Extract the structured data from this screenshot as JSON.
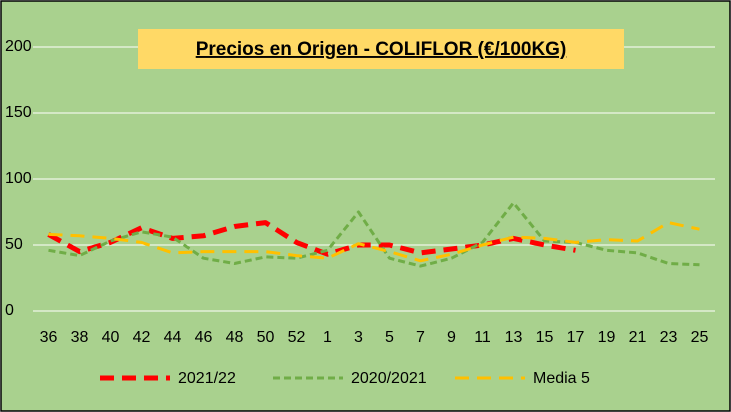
{
  "chart_data": {
    "type": "line",
    "title": "Precios en Origen - COLIFLOR (€/100KG)",
    "categories": [
      "36",
      "38",
      "40",
      "42",
      "44",
      "46",
      "48",
      "50",
      "52",
      "1",
      "3",
      "5",
      "7",
      "9",
      "11",
      "13",
      "15",
      "17",
      "19",
      "21",
      "23",
      "25"
    ],
    "series": [
      {
        "name": "2021/22",
        "color": "#ff0000",
        "dash": "14 8",
        "width": 5,
        "values": [
          58,
          45,
          52,
          63,
          55,
          57,
          64,
          67,
          52,
          43,
          50,
          50,
          44,
          47,
          50,
          55,
          50,
          46,
          null,
          null,
          null,
          null
        ]
      },
      {
        "name": "2020/2021",
        "color": "#70ad47",
        "dash": "7 4",
        "width": 3,
        "values": [
          46,
          42,
          53,
          60,
          56,
          40,
          36,
          41,
          40,
          46,
          75,
          40,
          34,
          40,
          52,
          82,
          53,
          52,
          46,
          44,
          36,
          35
        ]
      },
      {
        "name": "Media 5",
        "color": "#ffc000",
        "dash": "14 8",
        "width": 3,
        "values": [
          58,
          57,
          55,
          52,
          44,
          45,
          45,
          45,
          42,
          40,
          51,
          45,
          38,
          43,
          50,
          56,
          55,
          52,
          54,
          53,
          67,
          62
        ]
      }
    ],
    "ylim": [
      0,
      200
    ],
    "yticks": [
      0,
      50,
      100,
      150,
      200
    ],
    "grid": true
  }
}
